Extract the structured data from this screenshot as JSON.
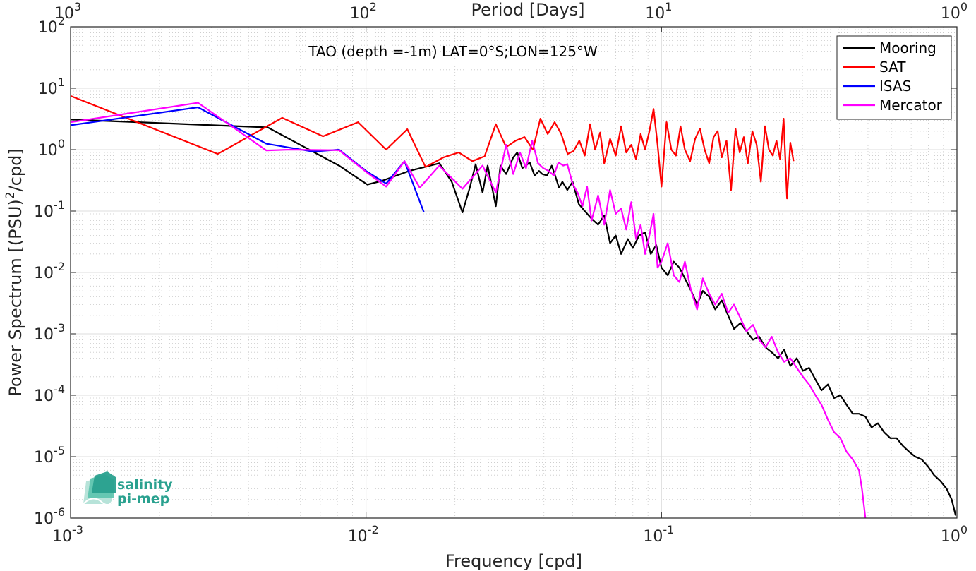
{
  "chart_data": {
    "type": "line",
    "title": "TAO (depth =-1m) LAT=0°S;LON=125°W",
    "xlabel": "Frequency [cpd]",
    "ylabel": "Power Spectrum [(PSU)²/cpd]",
    "top_xlabel": "Period [Days]",
    "xscale": "log",
    "yscale": "log",
    "xlim": [
      0.001,
      1
    ],
    "ylim": [
      1e-06,
      100
    ],
    "x_ticks": [
      {
        "value": 0.001,
        "base": "10",
        "exp": "-3"
      },
      {
        "value": 0.01,
        "base": "10",
        "exp": "-2"
      },
      {
        "value": 0.1,
        "base": "10",
        "exp": "-1"
      },
      {
        "value": 1,
        "base": "10",
        "exp": "0"
      }
    ],
    "y_ticks": [
      {
        "value": 1e-06,
        "base": "10",
        "exp": "-6"
      },
      {
        "value": 1e-05,
        "base": "10",
        "exp": "-5"
      },
      {
        "value": 0.0001,
        "base": "10",
        "exp": "-4"
      },
      {
        "value": 0.001,
        "base": "10",
        "exp": "-3"
      },
      {
        "value": 0.01,
        "base": "10",
        "exp": "-2"
      },
      {
        "value": 0.1,
        "base": "10",
        "exp": "-1"
      },
      {
        "value": 1,
        "base": "10",
        "exp": "0"
      },
      {
        "value": 10,
        "base": "10",
        "exp": "1"
      },
      {
        "value": 100,
        "base": "10",
        "exp": "2"
      }
    ],
    "top_ticks": [
      {
        "value": 0.001,
        "base": "10",
        "exp": "3"
      },
      {
        "value": 0.01,
        "base": "10",
        "exp": "2"
      },
      {
        "value": 0.1,
        "base": "10",
        "exp": "1"
      },
      {
        "value": 1,
        "base": "10",
        "exp": "0"
      }
    ],
    "grid": true,
    "legend_position": "top-right",
    "series": [
      {
        "name": "Mooring",
        "color": "#000000",
        "x": [
          0.001,
          0.00465,
          0.0081,
          0.0101,
          0.0113,
          0.014,
          0.0177,
          0.0195,
          0.0212,
          0.0225,
          0.0235,
          0.0248,
          0.0258,
          0.0275,
          0.0285,
          0.0298,
          0.0315,
          0.0325,
          0.0338,
          0.0348,
          0.0358,
          0.0372,
          0.0385,
          0.0395,
          0.041,
          0.0425,
          0.0438,
          0.045,
          0.0462,
          0.048,
          0.05,
          0.0525,
          0.055,
          0.058,
          0.061,
          0.064,
          0.067,
          0.07,
          0.073,
          0.077,
          0.08,
          0.084,
          0.088,
          0.092,
          0.096,
          0.1,
          0.105,
          0.11,
          0.115,
          0.12,
          0.126,
          0.132,
          0.138,
          0.145,
          0.152,
          0.16,
          0.168,
          0.176,
          0.185,
          0.194,
          0.204,
          0.214,
          0.225,
          0.236,
          0.248,
          0.26,
          0.273,
          0.287,
          0.301,
          0.316,
          0.332,
          0.348,
          0.366,
          0.384,
          0.403,
          0.423,
          0.444,
          0.466,
          0.49,
          0.514,
          0.54,
          0.567,
          0.595,
          0.625,
          0.656,
          0.689,
          0.723,
          0.76,
          0.797,
          0.837,
          0.879,
          0.923,
          0.96,
          0.99
        ],
        "y": [
          3.1,
          2.3,
          0.55,
          0.27,
          0.31,
          0.45,
          0.6,
          0.3,
          0.095,
          0.25,
          0.58,
          0.2,
          0.55,
          0.12,
          0.55,
          0.4,
          0.75,
          0.9,
          0.5,
          0.55,
          0.62,
          0.38,
          0.45,
          0.4,
          0.38,
          0.55,
          0.36,
          0.24,
          0.3,
          0.22,
          0.3,
          0.13,
          0.1,
          0.075,
          0.06,
          0.085,
          0.03,
          0.04,
          0.02,
          0.035,
          0.025,
          0.04,
          0.045,
          0.02,
          0.028,
          0.012,
          0.009,
          0.015,
          0.012,
          0.008,
          0.005,
          0.003,
          0.005,
          0.004,
          0.0025,
          0.0035,
          0.002,
          0.0012,
          0.0015,
          0.0011,
          0.0008,
          0.0009,
          0.0006,
          0.0005,
          0.0004,
          0.00055,
          0.0003,
          0.0004,
          0.00025,
          0.00028,
          0.00018,
          0.00012,
          0.00015,
          9e-05,
          0.0001,
          7e-05,
          5e-05,
          5e-05,
          4.5e-05,
          3e-05,
          3.5e-05,
          2.5e-05,
          2e-05,
          2e-05,
          1.5e-05,
          1.2e-05,
          1e-05,
          9e-06,
          7e-06,
          5e-06,
          4e-06,
          3e-06,
          2e-06,
          1.1e-06
        ]
      },
      {
        "name": "SAT",
        "color": "#ff0000",
        "x": [
          0.001,
          0.00315,
          0.0052,
          0.00715,
          0.0094,
          0.0117,
          0.0138,
          0.0159,
          0.0183,
          0.0206,
          0.0229,
          0.0252,
          0.0275,
          0.0298,
          0.0321,
          0.0344,
          0.0367,
          0.0389,
          0.0412,
          0.0435,
          0.0458,
          0.0481,
          0.0504,
          0.0527,
          0.055,
          0.0573,
          0.0596,
          0.062,
          0.064,
          0.067,
          0.07,
          0.073,
          0.076,
          0.079,
          0.082,
          0.085,
          0.088,
          0.091,
          0.094,
          0.097,
          0.1,
          0.104,
          0.108,
          0.112,
          0.116,
          0.12,
          0.125,
          0.13,
          0.135,
          0.14,
          0.145,
          0.15,
          0.155,
          0.16,
          0.166,
          0.172,
          0.178,
          0.184,
          0.19,
          0.196,
          0.203,
          0.21,
          0.217,
          0.224,
          0.231,
          0.238,
          0.245,
          0.252,
          0.259,
          0.266,
          0.273,
          0.28
        ],
        "y": [
          7.5,
          0.85,
          3.3,
          1.65,
          2.8,
          1.0,
          2.15,
          0.52,
          0.75,
          0.9,
          0.65,
          0.78,
          2.6,
          1.1,
          1.4,
          1.6,
          1.0,
          3.2,
          1.8,
          2.8,
          1.8,
          0.85,
          0.95,
          1.4,
          0.8,
          2.6,
          1.0,
          1.9,
          0.6,
          1.5,
          0.8,
          2.4,
          0.9,
          1.2,
          0.7,
          1.8,
          1.0,
          2.0,
          4.6,
          1.2,
          0.25,
          2.8,
          1.0,
          0.8,
          2.4,
          1.0,
          0.65,
          1.5,
          2.2,
          1.0,
          0.6,
          1.6,
          2.0,
          0.75,
          1.4,
          0.22,
          2.2,
          0.9,
          1.6,
          0.6,
          2.0,
          1.2,
          0.3,
          2.4,
          1.0,
          0.8,
          1.4,
          0.7,
          3.2,
          0.16,
          1.3,
          0.65
        ]
      },
      {
        "name": "ISAS",
        "color": "#0000ff",
        "x": [
          0.001,
          0.0027,
          0.0046,
          0.0066,
          0.0081,
          0.01,
          0.0117,
          0.0135,
          0.0157
        ],
        "y": [
          2.5,
          4.9,
          1.25,
          0.93,
          1.0,
          0.45,
          0.28,
          0.65,
          0.095
        ]
      },
      {
        "name": "Mercator",
        "color": "#ff00ff",
        "x": [
          0.001,
          0.0027,
          0.0046,
          0.0055,
          0.0081,
          0.0101,
          0.0117,
          0.0135,
          0.0152,
          0.0177,
          0.0212,
          0.0248,
          0.0275,
          0.0298,
          0.0315,
          0.0332,
          0.0348,
          0.0365,
          0.0382,
          0.0398,
          0.0415,
          0.0432,
          0.0448,
          0.0465,
          0.048,
          0.05,
          0.052,
          0.054,
          0.056,
          0.058,
          0.061,
          0.064,
          0.067,
          0.07,
          0.073,
          0.076,
          0.079,
          0.082,
          0.085,
          0.088,
          0.091,
          0.094,
          0.097,
          0.1,
          0.105,
          0.11,
          0.115,
          0.12,
          0.126,
          0.132,
          0.138,
          0.145,
          0.152,
          0.16,
          0.168,
          0.176,
          0.185,
          0.194,
          0.204,
          0.214,
          0.225,
          0.236,
          0.248,
          0.26,
          0.273,
          0.287,
          0.301,
          0.316,
          0.332,
          0.348,
          0.366,
          0.384,
          0.403,
          0.423,
          0.444,
          0.466,
          0.477,
          0.49
        ],
        "y": [
          2.8,
          5.8,
          0.97,
          1.0,
          0.98,
          0.42,
          0.25,
          0.65,
          0.24,
          0.55,
          0.23,
          0.55,
          0.2,
          1.2,
          0.4,
          0.9,
          0.5,
          1.4,
          0.6,
          0.5,
          0.45,
          0.38,
          0.62,
          0.55,
          0.58,
          0.28,
          0.2,
          0.12,
          0.25,
          0.07,
          0.18,
          0.06,
          0.22,
          0.09,
          0.11,
          0.05,
          0.14,
          0.035,
          0.06,
          0.02,
          0.04,
          0.09,
          0.012,
          0.015,
          0.03,
          0.009,
          0.007,
          0.015,
          0.005,
          0.0025,
          0.008,
          0.0045,
          0.003,
          0.0045,
          0.0022,
          0.003,
          0.0018,
          0.0011,
          0.0014,
          0.0008,
          0.0006,
          0.0009,
          0.0005,
          0.00035,
          0.0004,
          0.00028,
          0.0002,
          0.00015,
          0.0001,
          7e-05,
          4e-05,
          2.5e-05,
          2e-05,
          1.2e-05,
          9e-06,
          6e-06,
          3e-06,
          1e-06
        ]
      }
    ]
  },
  "logo": {
    "line1": "salinity",
    "line2": "pi-mep",
    "color": "#2aa18f"
  }
}
